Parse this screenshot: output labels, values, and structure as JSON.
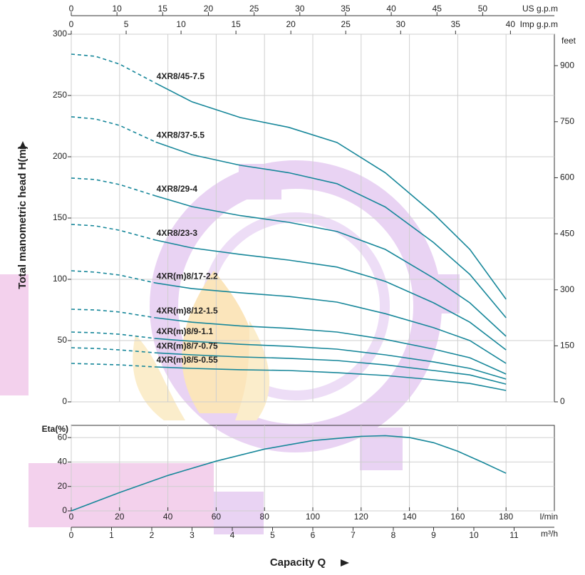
{
  "chart_data": [
    {
      "type": "line",
      "ylabel": "Total manometric head H(m)",
      "xlim": [
        0,
        200
      ],
      "xticks": [
        0,
        20,
        40,
        60,
        80,
        100,
        120,
        140,
        160,
        180
      ],
      "ylim": [
        0,
        300
      ],
      "yticks": [
        0,
        50,
        100,
        150,
        200,
        250,
        300
      ],
      "y2label": "feet",
      "y2lim": [
        0,
        984.25
      ],
      "y2ticks": [
        0,
        150,
        300,
        450,
        600,
        750,
        900
      ],
      "top_axes": [
        {
          "label": "US g.p.m",
          "lim": [
            0,
            52.84
          ],
          "ticks": [
            0,
            {
              "value": 5,
              "label": "10"
            },
            {
              "value": 10,
              "label": "15"
            },
            {
              "value": 15,
              "label": "20"
            },
            {
              "value": 20,
              "label": "25"
            },
            {
              "value": 25,
              "label": "30"
            },
            {
              "value": 30,
              "label": "35"
            },
            {
              "value": 35,
              "label": "40"
            },
            {
              "value": 40,
              "label": "45"
            },
            {
              "value": 45,
              "label": "50"
            }
          ]
        },
        {
          "label": "Imp g.p.m",
          "lim": [
            0,
            44
          ],
          "ticks": [
            0,
            5,
            10,
            15,
            20,
            25,
            30,
            35,
            40
          ]
        }
      ],
      "grid": true,
      "color": "#17879a",
      "dashed_until": 35,
      "x": [
        0,
        10,
        20,
        35,
        50,
        70,
        90,
        110,
        130,
        150,
        165,
        180
      ],
      "series": [
        {
          "name": "4XR8/45-7.5",
          "values": [
            283.7,
            282,
            275.6,
            260,
            244.8,
            232,
            224,
            211.6,
            187,
            153.5,
            124.4,
            83.7
          ]
        },
        {
          "name": "4XR8/37-5.5",
          "values": [
            232.6,
            230.8,
            225.6,
            212,
            201.7,
            193,
            187,
            178,
            159,
            130,
            104,
            68.6
          ]
        },
        {
          "name": "4XR8/29-4",
          "values": [
            182.6,
            181.4,
            177.3,
            168,
            159.3,
            152,
            146.5,
            139,
            124.4,
            101,
            80.8,
            53.5
          ]
        },
        {
          "name": "4XR8/23-3",
          "values": [
            144.8,
            143.6,
            140,
            132,
            125.6,
            120.3,
            115.7,
            110,
            98.3,
            80.8,
            65,
            42.4
          ]
        },
        {
          "name": "4XR(m)8/17-2.2",
          "values": [
            107,
            105.8,
            103.5,
            97,
            92.4,
            89,
            86,
            81.4,
            72,
            60.5,
            50,
            31.4
          ]
        },
        {
          "name": "4XR(m)8/12-1.5",
          "values": [
            75.6,
            75,
            73.3,
            68.6,
            65,
            62,
            60,
            57,
            51,
            43,
            36,
            22.7
          ]
        },
        {
          "name": "4XR(m)8/9-1.1",
          "values": [
            57,
            56.4,
            55.2,
            51.7,
            49.4,
            47,
            45.3,
            43,
            38.4,
            32.6,
            27.3,
            18.6
          ]
        },
        {
          "name": "4XR(m)8/7-0.75",
          "values": [
            44.2,
            43.6,
            42.4,
            40,
            38.4,
            36.6,
            35.5,
            33.7,
            30.2,
            25.6,
            22,
            14.5
          ]
        },
        {
          "name": "4XR(m)8/5-0.55",
          "values": [
            31.4,
            30.8,
            30.2,
            28.5,
            27.3,
            26.2,
            25.6,
            23.8,
            21.5,
            18,
            15,
            9.3
          ]
        }
      ]
    },
    {
      "type": "line",
      "ylabel": "Eta(%)",
      "xlabel": "Capacity Q",
      "xunit": "l/min",
      "xlim": [
        0,
        200
      ],
      "xticks": [
        0,
        20,
        40,
        60,
        80,
        100,
        120,
        140,
        160,
        180
      ],
      "ylim": [
        0,
        70
      ],
      "yticks": [
        0,
        20,
        40,
        60
      ],
      "grid": true,
      "color": "#17879a",
      "x2": {
        "label": "m³/h",
        "lim": [
          0,
          12
        ],
        "ticks": [
          0,
          1,
          2,
          3,
          4,
          5,
          6,
          7,
          8,
          9,
          10,
          11
        ]
      },
      "x": [
        0,
        20,
        40,
        60,
        80,
        100,
        120,
        130,
        140,
        150,
        160,
        170,
        180
      ],
      "values": [
        0,
        15,
        29,
        40.7,
        50.6,
        57.6,
        61,
        61.6,
        60,
        55.8,
        48.8,
        40,
        30.8
      ]
    }
  ]
}
